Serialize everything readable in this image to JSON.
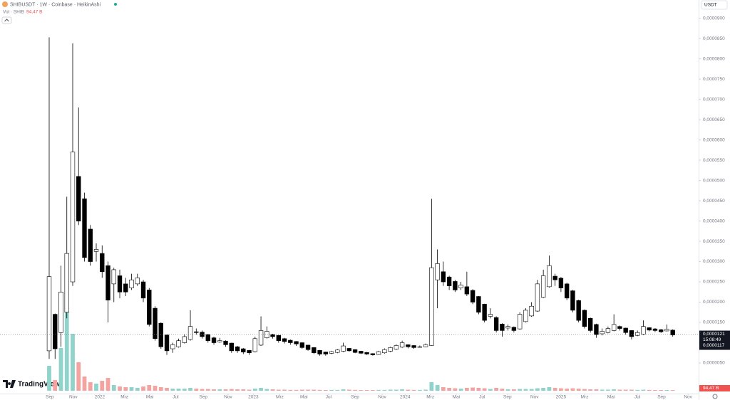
{
  "chart_data": {
    "type": "candlestick",
    "title": "SHIBUSDT · 1W · Coinbase · HeikinAshi",
    "volume_title": "Vol · SHIB",
    "currency": "USDT",
    "brand": "TradingView",
    "up_color": "#ffffff",
    "down_color": "#000000",
    "wick_color": "#000000",
    "volume_up_color": "#8fd3cb",
    "volume_down_color": "#f5a3a1",
    "grid": false,
    "ylim": [
      -2.9e-06,
      9.45e-05
    ],
    "yticks": [
      {
        "value": 5e-06,
        "label": "0,0000050"
      },
      {
        "value": 1e-05,
        "label": "0,0000100"
      },
      {
        "value": 1.5e-05,
        "label": "0,0000150"
      },
      {
        "value": 2e-05,
        "label": "0,0000200"
      },
      {
        "value": 2.5e-05,
        "label": "0,0000250"
      },
      {
        "value": 3e-05,
        "label": "0,0000300"
      },
      {
        "value": 3.5e-05,
        "label": "0,0000350"
      },
      {
        "value": 4e-05,
        "label": "0,0000400"
      },
      {
        "value": 4.5e-05,
        "label": "0,0000450"
      },
      {
        "value": 5e-05,
        "label": "0,0000500"
      },
      {
        "value": 5.5e-05,
        "label": "0,0000550"
      },
      {
        "value": 6e-05,
        "label": "0,0000600"
      },
      {
        "value": 6.5e-05,
        "label": "0,0000650"
      },
      {
        "value": 7e-05,
        "label": "0,0000700"
      },
      {
        "value": 7.5e-05,
        "label": "0,0000750"
      },
      {
        "value": 8e-05,
        "label": "0,0000800"
      },
      {
        "value": 8.5e-05,
        "label": "0,0000850"
      },
      {
        "value": 9e-05,
        "label": "0,0000900"
      }
    ],
    "xlim": [
      -8.36,
      110.4
    ],
    "xticks": [
      {
        "value": 0.1,
        "label": "Sep"
      },
      {
        "value": 4.1,
        "label": "Nov"
      },
      {
        "value": 8.6,
        "label": "2022"
      },
      {
        "value": 12.8,
        "label": "Mrz"
      },
      {
        "value": 17.1,
        "label": "Mai"
      },
      {
        "value": 21.5,
        "label": "Jul"
      },
      {
        "value": 26.2,
        "label": "Sep"
      },
      {
        "value": 30.4,
        "label": "Nov"
      },
      {
        "value": 34.7,
        "label": "2023"
      },
      {
        "value": 39.2,
        "label": "Mrz"
      },
      {
        "value": 43.3,
        "label": "Mai"
      },
      {
        "value": 47.5,
        "label": "Jul"
      },
      {
        "value": 52,
        "label": "Sep"
      },
      {
        "value": 56.6,
        "label": "Nov"
      },
      {
        "value": 60.5,
        "label": "2024"
      },
      {
        "value": 64.8,
        "label": "Mrz"
      },
      {
        "value": 69.2,
        "label": "Mai"
      },
      {
        "value": 73.6,
        "label": "Jul"
      },
      {
        "value": 77.9,
        "label": "Sep"
      },
      {
        "value": 82.5,
        "label": "Nov"
      },
      {
        "value": 87,
        "label": "2025"
      },
      {
        "value": 91,
        "label": "Mrz"
      },
      {
        "value": 95.5,
        "label": "Mai"
      },
      {
        "value": 100,
        "label": "Jul"
      },
      {
        "value": 104.1,
        "label": "Sep"
      },
      {
        "value": 108.6,
        "label": "Nov"
      }
    ],
    "ohlc": [
      [
        8e-06,
        8.53e-05,
        6e-06,
        2.63e-05
      ],
      [
        1.7e-05,
        1.72e-05,
        6e-06,
        8.5e-06
      ],
      [
        1.25e-05,
        2.9e-05,
        9e-06,
        2.25e-05
      ],
      [
        1.75e-05,
        4.6e-05,
        1.6e-05,
        3.2e-05
      ],
      [
        2.5e-05,
        8.38e-05,
        2.4e-05,
        5.7e-05
      ],
      [
        5.1e-05,
        6.8e-05,
        3.9e-05,
        4e-05
      ],
      [
        4.55e-05,
        4.7e-05,
        3e-05,
        3.1e-05
      ],
      [
        3.8e-05,
        3.9e-05,
        2.9e-05,
        3e-05
      ],
      [
        3.25e-05,
        3.45e-05,
        3e-05,
        3.3e-05
      ],
      [
        3.2e-05,
        3.4e-05,
        2.6e-05,
        2.75e-05
      ],
      [
        2.9e-05,
        3e-05,
        1.5e-05,
        2.05e-05
      ],
      [
        2.45e-05,
        2.85e-05,
        2e-05,
        2.8e-05
      ],
      [
        2.65e-05,
        2.8e-05,
        2.1e-05,
        2.25e-05
      ],
      [
        2.45e-05,
        2.6e-05,
        2.15e-05,
        2.25e-05
      ],
      [
        2.35e-05,
        2.7e-05,
        2.3e-05,
        2.55e-05
      ],
      [
        2.45e-05,
        2.7e-05,
        2.4e-05,
        2.6e-05
      ],
      [
        2.5e-05,
        2.55e-05,
        2e-05,
        2.1e-05
      ],
      [
        2.3e-05,
        2.35e-05,
        1.4e-05,
        1.45e-05
      ],
      [
        1.85e-05,
        1.9e-05,
        1.05e-05,
        1.1e-05
      ],
      [
        1.48e-05,
        1.5e-05,
        8.5e-06,
        9e-06
      ],
      [
        1.19e-05,
        1.2e-05,
        7e-06,
        8e-06
      ],
      [
        8.5e-06,
        1e-05,
        7.5e-06,
        9.5e-06
      ],
      [
        9e-06,
        1.1e-05,
        8.8e-06,
        1.05e-05
      ],
      [
        1e-05,
        1.2e-05,
        9.8e-06,
        1.15e-05
      ],
      [
        1.08e-05,
        1.8e-05,
        1.05e-05,
        1.4e-05
      ],
      [
        1.27e-05,
        1.35e-05,
        1.2e-05,
        1.25e-05
      ],
      [
        1.26e-05,
        1.3e-05,
        1.1e-05,
        1.15e-05
      ],
      [
        1.2e-05,
        1.22e-05,
        1e-05,
        1.05e-05
      ],
      [
        1.12e-05,
        1.15e-05,
        9.5e-06,
        1e-05
      ],
      [
        1.02e-05,
        1.12e-05,
        1e-05,
        1.05e-05
      ],
      [
        1.04e-05,
        1.06e-05,
        9e-06,
        9.5e-06
      ],
      [
        9.9e-06,
        1e-05,
        7.5e-06,
        8e-06
      ],
      [
        9e-06,
        9.2e-06,
        7.5e-06,
        8e-06
      ],
      [
        8.5e-06,
        8.7e-06,
        7.2e-06,
        7.7e-06
      ],
      [
        8.1e-06,
        8.2e-06,
        7e-06,
        7.5e-06
      ],
      [
        7.8e-06,
        1.15e-05,
        7.6e-06,
        1.1e-05
      ],
      [
        9.4e-06,
        1.65e-05,
        9.2e-06,
        1.3e-05
      ],
      [
        1.12e-05,
        1.4e-05,
        1.1e-05,
        1.28e-05
      ],
      [
        1.2e-05,
        1.22e-05,
        1.1e-05,
        1.15e-05
      ],
      [
        1.18e-05,
        1.19e-05,
        1e-05,
        1.05e-05
      ],
      [
        1.1e-05,
        1.12e-05,
        9.8e-06,
        1.03e-05
      ],
      [
        1.06e-05,
        1.08e-05,
        9.5e-06,
        1e-05
      ],
      [
        1.03e-05,
        1.04e-05,
        9.2e-06,
        9.7e-06
      ],
      [
        1e-05,
        1.01e-05,
        8.5e-06,
        8.8e-06
      ],
      [
        9.4e-06,
        9.5e-06,
        8e-06,
        8.3e-06
      ],
      [
        8.8e-06,
        8.9e-06,
        7.2e-06,
        7.5e-06
      ],
      [
        8.1e-06,
        8.2e-06,
        6.8e-06,
        7.2e-06
      ],
      [
        7.7e-06,
        7.8e-06,
        6.8e-06,
        7.2e-06
      ],
      [
        7.4e-06,
        8e-06,
        7.2e-06,
        7.8e-06
      ],
      [
        7.6e-06,
        8.4e-06,
        7.4e-06,
        8.2e-06
      ],
      [
        7.9e-06,
        1e-05,
        7.7e-06,
        9.2e-06
      ],
      [
        8.6e-06,
        8.7e-06,
        7.8e-06,
        8e-06
      ],
      [
        8.3e-06,
        8.4e-06,
        7.4e-06,
        7.6e-06
      ],
      [
        7.9e-06,
        8e-06,
        7.2e-06,
        7.4e-06
      ],
      [
        7.6e-06,
        7.7e-06,
        7e-06,
        7.2e-06
      ],
      [
        7.3e-06,
        7.4e-06,
        6.8e-06,
        7e-06
      ],
      [
        7.1e-06,
        8e-06,
        7e-06,
        7.8e-06
      ],
      [
        7.5e-06,
        8.6e-06,
        7.3e-06,
        8.3e-06
      ],
      [
        7.9e-06,
        9e-06,
        7.7e-06,
        8.8e-06
      ],
      [
        8.4e-06,
        9.6e-06,
        8.2e-06,
        9.3e-06
      ],
      [
        8.9e-06,
        1.05e-05,
        8.7e-06,
        1e-05
      ],
      [
        9.5e-06,
        9.6e-06,
        8.6e-06,
        9e-06
      ],
      [
        9.3e-06,
        9.4e-06,
        8.5e-06,
        8.8e-06
      ],
      [
        8.9e-06,
        9.3e-06,
        8.8e-06,
        9e-06
      ],
      [
        9e-06,
        9.8e-06,
        8.9e-06,
        9.5e-06
      ],
      [
        9.3e-06,
        4.55e-05,
        9.2e-06,
        2.85e-05
      ],
      [
        2.55e-05,
        3.3e-05,
        1.85e-05,
        2.95e-05
      ],
      [
        2.75e-05,
        3e-05,
        2.4e-05,
        2.5e-05
      ],
      [
        2.62e-05,
        2.65e-05,
        2.3e-05,
        2.4e-05
      ],
      [
        2.51e-05,
        2.55e-05,
        2.25e-05,
        2.3e-05
      ],
      [
        2.35e-05,
        2.5e-05,
        2.3e-05,
        2.42e-05
      ],
      [
        2.38e-05,
        2.75e-05,
        2.15e-05,
        2.2e-05
      ],
      [
        2.29e-05,
        2.32e-05,
        1.95e-05,
        2e-05
      ],
      [
        2.14e-05,
        2.15e-05,
        1.7e-05,
        1.75e-05
      ],
      [
        1.95e-05,
        1.96e-05,
        1.5e-05,
        1.55e-05
      ],
      [
        1.65e-05,
        1.85e-05,
        1.6e-05,
        1.7e-05
      ],
      [
        1.62e-05,
        1.65e-05,
        1.25e-05,
        1.3e-05
      ],
      [
        1.46e-05,
        1.48e-05,
        1.15e-05,
        1.3e-05
      ],
      [
        1.36e-05,
        1.45e-05,
        1.3e-05,
        1.4e-05
      ],
      [
        1.38e-05,
        1.4e-05,
        1.25e-05,
        1.3e-05
      ],
      [
        1.34e-05,
        1.75e-05,
        1.32e-05,
        1.7e-05
      ],
      [
        1.52e-05,
        1.85e-05,
        1.5e-05,
        1.8e-05
      ],
      [
        1.66e-05,
        2e-05,
        1.64e-05,
        1.9e-05
      ],
      [
        1.78e-05,
        2.55e-05,
        1.76e-05,
        2.45e-05
      ],
      [
        2.12e-05,
        2.8e-05,
        2.1e-05,
        2.65e-05
      ],
      [
        2.38e-05,
        3.15e-05,
        2.36e-05,
        2.9e-05
      ],
      [
        2.64e-05,
        2.7e-05,
        2.4e-05,
        2.55e-05
      ],
      [
        2.59e-05,
        2.62e-05,
        2.25e-05,
        2.35e-05
      ],
      [
        2.45e-05,
        2.48e-05,
        2.05e-05,
        2.1e-05
      ],
      [
        2.28e-05,
        2.3e-05,
        1.75e-05,
        1.8e-05
      ],
      [
        2.04e-05,
        2.06e-05,
        1.5e-05,
        1.55e-05
      ],
      [
        1.8e-05,
        1.82e-05,
        1.35e-05,
        1.4e-05
      ],
      [
        1.6e-05,
        1.62e-05,
        1.25e-05,
        1.3e-05
      ],
      [
        1.45e-05,
        1.47e-05,
        1.12e-05,
        1.2e-05
      ],
      [
        1.22e-05,
        1.35e-05,
        1.18e-05,
        1.28e-05
      ],
      [
        1.25e-05,
        1.4e-05,
        1.23e-05,
        1.35e-05
      ],
      [
        1.3e-05,
        1.7e-05,
        1.28e-05,
        1.45e-05
      ],
      [
        1.4e-05,
        1.42e-05,
        1.3e-05,
        1.35e-05
      ],
      [
        1.36e-05,
        1.37e-05,
        1.2e-05,
        1.25e-05
      ],
      [
        1.3e-05,
        1.31e-05,
        1.08e-05,
        1.15e-05
      ],
      [
        1.18e-05,
        1.3e-05,
        1.16e-05,
        1.25e-05
      ],
      [
        1.21e-05,
        1.55e-05,
        1.19e-05,
        1.4e-05
      ],
      [
        1.37e-05,
        1.38e-05,
        1.28e-05,
        1.31e-05
      ],
      [
        1.34e-05,
        1.36e-05,
        1.26e-05,
        1.3e-05
      ],
      [
        1.32e-05,
        1.34e-05,
        1.24e-05,
        1.27e-05
      ],
      [
        1.29e-05,
        1.45e-05,
        1.28e-05,
        1.33e-05
      ],
      [
        1.31e-05,
        1.33e-05,
        1.15e-05,
        1.19e-05
      ]
    ],
    "volume": [
      3500,
      1500,
      6000,
      14000,
      8000,
      4000,
      2000,
      1200,
      1000,
      1400,
      1800,
      800,
      600,
      500,
      500,
      400,
      600,
      800,
      700,
      500,
      400,
      300,
      300,
      300,
      400,
      300,
      250,
      250,
      200,
      200,
      200,
      250,
      200,
      200,
      150,
      300,
      400,
      250,
      200,
      150,
      150,
      120,
      120,
      150,
      150,
      150,
      120,
      100,
      120,
      120,
      200,
      150,
      120,
      100,
      100,
      100,
      120,
      120,
      150,
      150,
      200,
      150,
      120,
      120,
      150,
      1200,
      800,
      500,
      400,
      350,
      300,
      400,
      450,
      400,
      350,
      250,
      400,
      300,
      200,
      200,
      250,
      250,
      250,
      350,
      400,
      500,
      400,
      350,
      300,
      350,
      300,
      250,
      200,
      200,
      150,
      150,
      200,
      150,
      150,
      150,
      120,
      150,
      120,
      100,
      100,
      100,
      94.47
    ],
    "volume_last_label": "94,47 B",
    "price_labels": [
      {
        "value": 1.21e-05,
        "label": "0,0000121"
      },
      {
        "value": 1.17e-05,
        "label": "0,0000117"
      }
    ],
    "countdown": "15:08:49"
  }
}
